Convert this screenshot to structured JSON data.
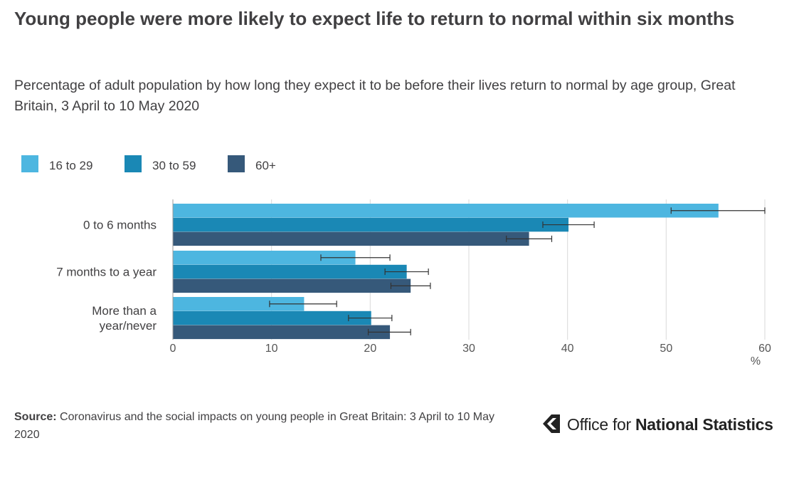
{
  "title": "Young people were more likely to expect life to return to normal within six months",
  "subtitle": "Percentage of adult population by how long they expect it to be before their lives return to normal by age group, Great Britain, 3 April to 10 May 2020",
  "legend": [
    {
      "label": "16 to 29",
      "color": "#4db6e0"
    },
    {
      "label": "30 to 59",
      "color": "#1a88b5"
    },
    {
      "label": "60+",
      "color": "#36597a"
    }
  ],
  "chart_data": {
    "type": "bar",
    "orientation": "horizontal",
    "categories": [
      "0 to 6 months",
      "7 months to a year",
      "More than a year/never"
    ],
    "category_lines": [
      [
        "0 to 6 months"
      ],
      [
        "7 months to a year"
      ],
      [
        "More than a",
        "year/never"
      ]
    ],
    "series": [
      {
        "name": "16 to 29",
        "color": "#4db6e0",
        "values": [
          55.3,
          18.5,
          13.3
        ],
        "ci_low": [
          50.5,
          15.0,
          9.8
        ],
        "ci_high": [
          60.0,
          22.0,
          16.6
        ]
      },
      {
        "name": "30 to 59",
        "color": "#1a88b5",
        "values": [
          40.1,
          23.7,
          20.1
        ],
        "ci_low": [
          37.5,
          21.5,
          17.8
        ],
        "ci_high": [
          42.7,
          25.9,
          22.2
        ]
      },
      {
        "name": "60+",
        "color": "#36597a",
        "values": [
          36.1,
          24.1,
          22.0
        ],
        "ci_low": [
          33.8,
          22.1,
          19.8
        ],
        "ci_high": [
          38.4,
          26.1,
          24.1
        ]
      }
    ],
    "xticks": [
      0,
      10,
      20,
      30,
      40,
      50,
      60
    ],
    "xlim": [
      0,
      60
    ],
    "xunit": "%",
    "grid": true,
    "legend_position": "top-left"
  },
  "source": {
    "label": "Source:",
    "text": "Coronavirus and the social impacts on young people in Great Britain: 3 April to 10 May 2020"
  },
  "logo": {
    "text_regular": "Office for ",
    "text_bold": "National Statistics",
    "icon": "ons-logo-icon"
  }
}
